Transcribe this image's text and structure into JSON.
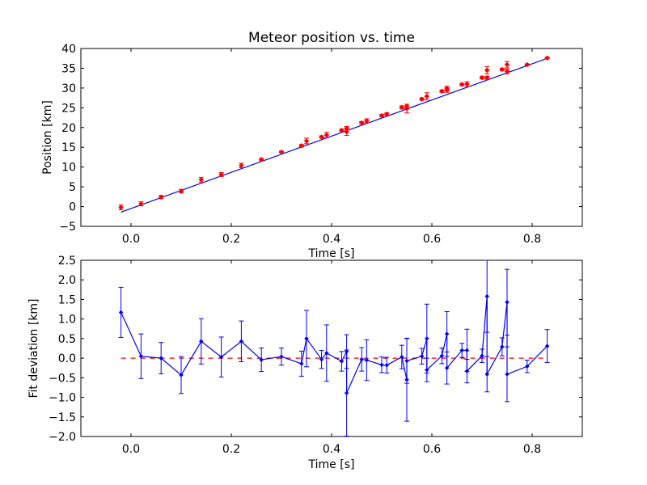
{
  "chart_data": [
    {
      "type": "scatter",
      "title": "Meteor position vs. time",
      "xlabel": "Time [s]",
      "ylabel": "Position [km]",
      "xlim": [
        -0.1,
        0.9
      ],
      "ylim": [
        -5,
        40
      ],
      "x_ticks": [
        "0.0",
        "0.2",
        "0.4",
        "0.6",
        "0.8"
      ],
      "y_ticks": [
        "−5",
        "0",
        "5",
        "10",
        "15",
        "20",
        "25",
        "30",
        "35",
        "40"
      ],
      "grid": false,
      "series": [
        {
          "kind": "points-with-errorbars",
          "color": "#ff0000",
          "points": [
            {
              "x": -0.02,
              "y": -0.2,
              "err": 0.6
            },
            {
              "x": 0.02,
              "y": 0.7,
              "err": 0.5
            },
            {
              "x": 0.06,
              "y": 2.4,
              "err": 0.4
            },
            {
              "x": 0.1,
              "y": 3.9,
              "err": 0.45
            },
            {
              "x": 0.14,
              "y": 6.8,
              "err": 0.6
            },
            {
              "x": 0.18,
              "y": 8.1,
              "err": 0.5
            },
            {
              "x": 0.22,
              "y": 10.4,
              "err": 0.55
            },
            {
              "x": 0.26,
              "y": 11.9,
              "err": 0.3
            },
            {
              "x": 0.3,
              "y": 13.8,
              "err": 0.2
            },
            {
              "x": 0.34,
              "y": 15.4,
              "err": 0.3
            },
            {
              "x": 0.35,
              "y": 16.6,
              "err": 0.7
            },
            {
              "x": 0.38,
              "y": 17.6,
              "err": 0.3
            },
            {
              "x": 0.39,
              "y": 18.1,
              "err": 0.7
            },
            {
              "x": 0.42,
              "y": 19.3,
              "err": 0.3
            },
            {
              "x": 0.43,
              "y": 19.8,
              "err": 0.45
            },
            {
              "x": 0.43,
              "y": 18.9,
              "err": 0.9
            },
            {
              "x": 0.46,
              "y": 21.2,
              "err": 0.3
            },
            {
              "x": 0.47,
              "y": 21.7,
              "err": 0.5
            },
            {
              "x": 0.5,
              "y": 23.0,
              "err": 0.3
            },
            {
              "x": 0.51,
              "y": 23.4,
              "err": 0.3
            },
            {
              "x": 0.54,
              "y": 25.1,
              "err": 0.4
            },
            {
              "x": 0.55,
              "y": 24.8,
              "err": 1.1
            },
            {
              "x": 0.55,
              "y": 25.4,
              "err": 0.5
            },
            {
              "x": 0.58,
              "y": 27.2,
              "err": 0.3
            },
            {
              "x": 0.59,
              "y": 27.9,
              "err": 0.9
            },
            {
              "x": 0.62,
              "y": 29.2,
              "err": 0.3
            },
            {
              "x": 0.63,
              "y": 29.5,
              "err": 0.6
            },
            {
              "x": 0.63,
              "y": 29.9,
              "err": 0.55
            },
            {
              "x": 0.66,
              "y": 30.9,
              "err": 0.3
            },
            {
              "x": 0.67,
              "y": 31.0,
              "err": 0.6
            },
            {
              "x": 0.7,
              "y": 32.6,
              "err": 0.3
            },
            {
              "x": 0.71,
              "y": 34.5,
              "err": 0.9
            },
            {
              "x": 0.71,
              "y": 32.6,
              "err": 0.4
            },
            {
              "x": 0.74,
              "y": 34.7,
              "err": 0.3
            },
            {
              "x": 0.75,
              "y": 35.9,
              "err": 0.8
            },
            {
              "x": 0.75,
              "y": 34.2,
              "err": 0.6
            },
            {
              "x": 0.79,
              "y": 35.9,
              "err": 0.2
            },
            {
              "x": 0.83,
              "y": 37.6,
              "err": 0.2
            }
          ]
        },
        {
          "kind": "fit-line",
          "color": "#0000ff",
          "x": [
            -0.02,
            0.83
          ],
          "y": [
            -1.4,
            37.5
          ]
        }
      ]
    },
    {
      "type": "line",
      "title": "",
      "xlabel": "Time [s]",
      "ylabel": "Fit deviation [km]",
      "xlim": [
        -0.1,
        0.9
      ],
      "ylim": [
        -2.0,
        2.5
      ],
      "x_ticks": [
        "0.0",
        "0.2",
        "0.4",
        "0.6",
        "0.8"
      ],
      "y_ticks": [
        "−2.0",
        "−1.5",
        "−1.0",
        "−0.5",
        "0.0",
        "0.5",
        "1.0",
        "1.5",
        "2.0",
        "2.5"
      ],
      "grid": false,
      "zero_line": {
        "y": 0,
        "color": "#ff0000",
        "style": "dashed",
        "x": [
          -0.02,
          0.83
        ]
      },
      "series": [
        {
          "kind": "line-with-errorbars",
          "color": "#0000ff",
          "points": [
            {
              "x": -0.02,
              "y": 1.17,
              "err": 0.64
            },
            {
              "x": 0.02,
              "y": 0.05,
              "err": 0.57
            },
            {
              "x": 0.06,
              "y": 0.0,
              "err": 0.4
            },
            {
              "x": 0.1,
              "y": -0.43,
              "err": 0.47
            },
            {
              "x": 0.14,
              "y": 0.43,
              "err": 0.58
            },
            {
              "x": 0.18,
              "y": 0.03,
              "err": 0.51
            },
            {
              "x": 0.22,
              "y": 0.43,
              "err": 0.52
            },
            {
              "x": 0.26,
              "y": -0.04,
              "err": 0.3
            },
            {
              "x": 0.3,
              "y": 0.04,
              "err": 0.22
            },
            {
              "x": 0.34,
              "y": -0.14,
              "err": 0.32
            },
            {
              "x": 0.35,
              "y": 0.5,
              "err": 0.72
            },
            {
              "x": 0.38,
              "y": -0.03,
              "err": 0.23
            },
            {
              "x": 0.39,
              "y": 0.13,
              "err": 0.72
            },
            {
              "x": 0.42,
              "y": -0.08,
              "err": 0.25
            },
            {
              "x": 0.43,
              "y": 0.17,
              "err": 0.43
            },
            {
              "x": 0.43,
              "y": -0.89,
              "err": 1.1
            },
            {
              "x": 0.46,
              "y": -0.03,
              "err": 0.3
            },
            {
              "x": 0.47,
              "y": -0.05,
              "err": 0.52
            },
            {
              "x": 0.5,
              "y": -0.17,
              "err": 0.2
            },
            {
              "x": 0.51,
              "y": -0.18,
              "err": 0.2
            },
            {
              "x": 0.54,
              "y": 0.03,
              "err": 0.3
            },
            {
              "x": 0.55,
              "y": -0.55,
              "err": 1.06
            },
            {
              "x": 0.55,
              "y": -0.07,
              "err": 0.57
            },
            {
              "x": 0.58,
              "y": 0.05,
              "err": 0.2
            },
            {
              "x": 0.59,
              "y": 0.5,
              "err": 0.88
            },
            {
              "x": 0.59,
              "y": -0.3,
              "err": 0.3
            },
            {
              "x": 0.62,
              "y": 0.06,
              "err": 0.2
            },
            {
              "x": 0.63,
              "y": 0.62,
              "err": 0.57
            },
            {
              "x": 0.63,
              "y": -0.25,
              "err": 0.41
            },
            {
              "x": 0.66,
              "y": 0.2,
              "err": 0.18
            },
            {
              "x": 0.67,
              "y": 0.2,
              "err": 0.54
            },
            {
              "x": 0.67,
              "y": -0.33,
              "err": 0.3
            },
            {
              "x": 0.7,
              "y": 0.06,
              "err": 0.17
            },
            {
              "x": 0.71,
              "y": 1.58,
              "err": 0.92
            },
            {
              "x": 0.71,
              "y": -0.41,
              "err": 0.45
            },
            {
              "x": 0.74,
              "y": 0.29,
              "err": 0.23
            },
            {
              "x": 0.75,
              "y": 1.43,
              "err": 0.84
            },
            {
              "x": 0.75,
              "y": -0.41,
              "err": 0.7
            },
            {
              "x": 0.79,
              "y": -0.21,
              "err": 0.16
            },
            {
              "x": 0.83,
              "y": 0.31,
              "err": 0.42
            }
          ]
        }
      ]
    }
  ]
}
